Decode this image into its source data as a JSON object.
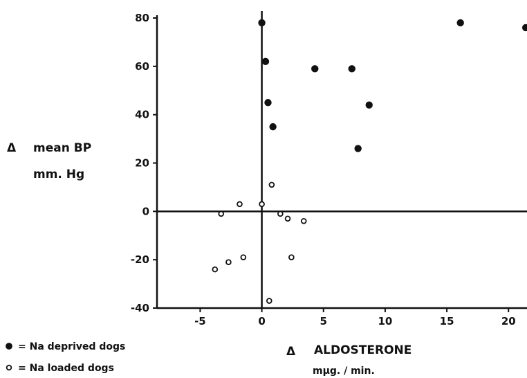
{
  "chart_data": {
    "type": "scatter",
    "xlabel_symbol": "Δ",
    "xlabel": "ALDOSTERONE",
    "xunit": "mμg. / min.",
    "ylabel_symbol": "Δ",
    "ylabel": "mean BP",
    "yunit": "mm. Hg",
    "xlim": [
      -8.5,
      21.5
    ],
    "ylim": [
      -40,
      80
    ],
    "xticks": [
      -5,
      0,
      5,
      10,
      15,
      20
    ],
    "yticks": [
      -40,
      -20,
      0,
      20,
      40,
      60,
      80
    ],
    "xtick_labels": [
      "-5",
      "0",
      "5",
      "10",
      "15",
      "20"
    ],
    "ytick_labels": [
      "-40",
      "-20",
      "0",
      "20",
      "40",
      "60",
      "80"
    ],
    "grid": false,
    "legend_position": "bottom-left",
    "series": [
      {
        "name": "= Na deprived dogs",
        "marker": "filled-circle",
        "points": [
          [
            0.0,
            78
          ],
          [
            0.3,
            62
          ],
          [
            0.5,
            45
          ],
          [
            0.9,
            35
          ],
          [
            4.3,
            59
          ],
          [
            7.3,
            59
          ],
          [
            7.8,
            26
          ],
          [
            8.7,
            44
          ],
          [
            16.1,
            78
          ],
          [
            21.4,
            76
          ]
        ]
      },
      {
        "name": "= Na loaded dogs",
        "marker": "open-circle",
        "points": [
          [
            -3.8,
            -24
          ],
          [
            -2.7,
            -21
          ],
          [
            -1.5,
            -19
          ],
          [
            -3.3,
            -1
          ],
          [
            -1.8,
            3
          ],
          [
            0.0,
            3
          ],
          [
            0.8,
            11
          ],
          [
            1.5,
            -1
          ],
          [
            2.1,
            -3
          ],
          [
            3.4,
            -4
          ],
          [
            2.4,
            -19
          ],
          [
            0.6,
            -37
          ]
        ]
      }
    ]
  }
}
